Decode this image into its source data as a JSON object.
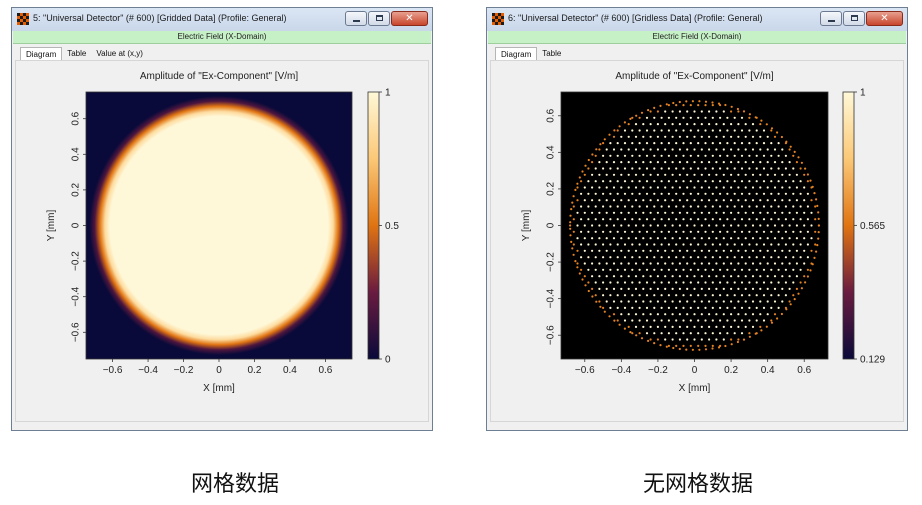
{
  "windows": [
    {
      "title": "5: \"Universal Detector\" (# 600) [Gridded Data] (Profile: General)",
      "domain_bar": "Electric Field (X-Domain)",
      "tabs": [
        "Diagram",
        "Table",
        "Value at (x,y)"
      ],
      "active_tab": "Diagram"
    },
    {
      "title": "6: \"Universal Detector\" (# 600) [Gridless Data] (Profile: General)",
      "domain_bar": "Electric Field (X-Domain)",
      "tabs": [
        "Diagram",
        "Table"
      ],
      "active_tab": "Diagram"
    }
  ],
  "window_controls": {
    "minimize_icon": "minimize-icon",
    "maximize_icon": "maximize-icon",
    "close_icon": "close-icon"
  },
  "captions": [
    "网格数据",
    "无网格数据"
  ],
  "chart_data": [
    {
      "type": "heatmap",
      "title": "Amplitude of \"Ex-Component\"  [V/m]",
      "xlabel": "X [mm]",
      "ylabel": "Y [mm]",
      "xlim": [
        -0.75,
        0.75
      ],
      "ylim": [
        -0.75,
        0.75
      ],
      "x_ticks": [
        -0.6,
        -0.4,
        -0.2,
        0,
        0.2,
        0.4,
        0.6
      ],
      "y_ticks": [
        -0.6,
        -0.4,
        -0.2,
        0,
        0.2,
        0.4,
        0.6
      ],
      "field": {
        "shape": "circular top-hat",
        "center": [
          0,
          0
        ],
        "radius_mm": 0.65,
        "edge_width_mm": 0.05
      },
      "colorbar": {
        "min": 0,
        "max": 1,
        "ticks": [
          1,
          0.5,
          0
        ],
        "colors": [
          "#0a0a3a",
          "#6a1b40",
          "#e07412",
          "#fbc877",
          "#fff8d8"
        ]
      },
      "grid": false
    },
    {
      "type": "scatter",
      "title": "Amplitude of \"Ex-Component\"  [V/m]",
      "xlabel": "X [mm]",
      "ylabel": "Y [mm]",
      "xlim": [
        -0.73,
        0.73
      ],
      "ylim": [
        -0.73,
        0.73
      ],
      "x_ticks": [
        -0.6,
        -0.4,
        -0.2,
        0,
        0.2,
        0.4,
        0.6
      ],
      "y_ticks": [
        -0.6,
        -0.4,
        -0.2,
        0,
        0.2,
        0.4,
        0.6
      ],
      "field": {
        "shape": "hexagonal point grid inside circle",
        "center": [
          0,
          0
        ],
        "radius_mm": 0.68,
        "pitch_mm": 0.04,
        "inner_value": 1,
        "edge_value": 0.6
      },
      "background": "#000000",
      "colorbar": {
        "min": 0.129,
        "max": 1,
        "ticks": [
          1,
          0.565,
          0.129
        ],
        "colors": [
          "#0a0a3a",
          "#6a1b40",
          "#e07412",
          "#fbc877",
          "#fff8d8"
        ]
      },
      "grid": false
    }
  ]
}
